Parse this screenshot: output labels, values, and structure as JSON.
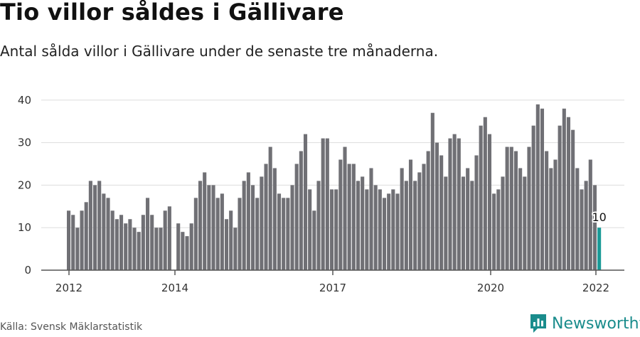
{
  "title": "Tio villor såldes i Gällivare",
  "subtitle": "Antal sålda villor i Gällivare under de senaste tre månaderna.",
  "source": "Källa: Svensk Mäklarstatistik",
  "brand": "Newsworthy",
  "colors": {
    "bar": "#707075",
    "highlight": "#1a9a97",
    "grid": "#dddddd",
    "axis": "#555555",
    "brand": "#1a8c8c"
  },
  "chart_data": {
    "type": "bar",
    "x_ticks": [
      "2012",
      "2014",
      "2017",
      "2020",
      "2022"
    ],
    "y_ticks": [
      "0",
      "10",
      "20",
      "30",
      "40"
    ],
    "ylim": [
      0,
      42
    ],
    "grid": true,
    "values": [
      14,
      13,
      10,
      14,
      16,
      21,
      20,
      21,
      18,
      17,
      14,
      12,
      13,
      11,
      12,
      10,
      9,
      13,
      17,
      13,
      10,
      10,
      14,
      15,
      0,
      11,
      9,
      8,
      11,
      17,
      21,
      23,
      20,
      20,
      17,
      18,
      12,
      14,
      10,
      17,
      21,
      23,
      20,
      17,
      22,
      25,
      29,
      24,
      18,
      17,
      17,
      20,
      25,
      28,
      32,
      19,
      14,
      21,
      31,
      31,
      19,
      19,
      26,
      29,
      25,
      25,
      21,
      22,
      19,
      24,
      20,
      19,
      17,
      18,
      19,
      18,
      24,
      21,
      26,
      21,
      23,
      25,
      28,
      37,
      30,
      27,
      22,
      31,
      32,
      31,
      22,
      24,
      21,
      27,
      34,
      36,
      32,
      18,
      19,
      22,
      29,
      29,
      28,
      24,
      22,
      29,
      34,
      39,
      38,
      28,
      24,
      26,
      34,
      38,
      36,
      33,
      24,
      19,
      21,
      26,
      20,
      10
    ],
    "highlight_label": "10"
  }
}
